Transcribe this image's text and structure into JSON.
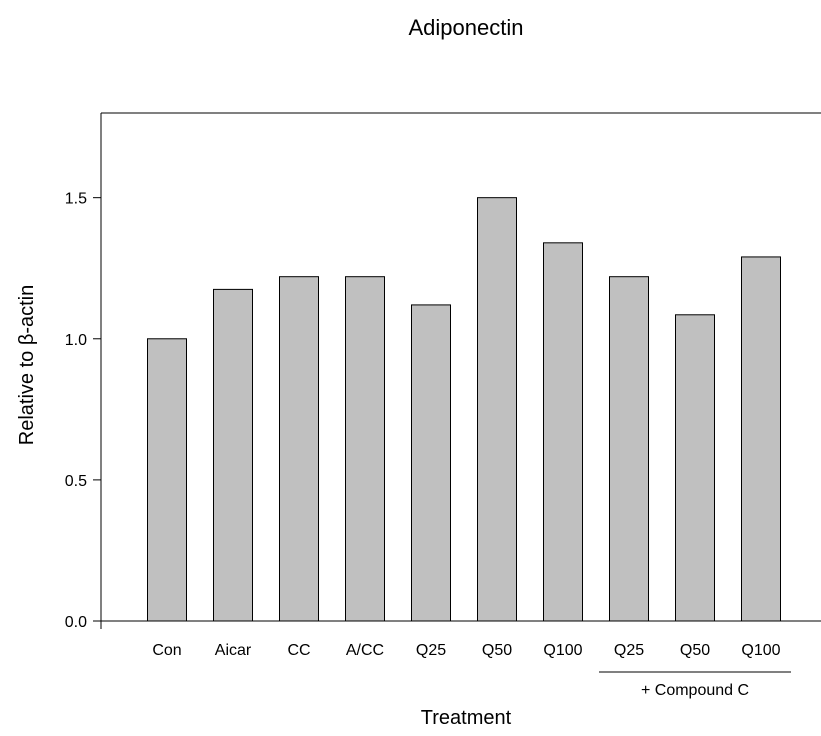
{
  "chart_data": {
    "type": "bar",
    "title": "Adiponectin",
    "xlabel": "Treatment",
    "ylabel": "Relative to β-actin",
    "categories": [
      "Con",
      "Aicar",
      "CC",
      "A/CC",
      "Q25",
      "Q50",
      "Q100",
      "Q25",
      "Q50",
      "Q100"
    ],
    "values": [
      1.0,
      1.175,
      1.22,
      1.22,
      1.12,
      1.5,
      1.34,
      1.22,
      1.085,
      1.29
    ],
    "ylim": [
      0,
      1.8
    ],
    "yticks": [
      "0.0",
      "0.5",
      "1.0",
      "1.5"
    ],
    "group_annotation": {
      "label": "+ Compound C",
      "first_index": 7,
      "last_index": 9
    },
    "grid": false,
    "legend": "none",
    "bar_color": "#c0c0c0"
  }
}
